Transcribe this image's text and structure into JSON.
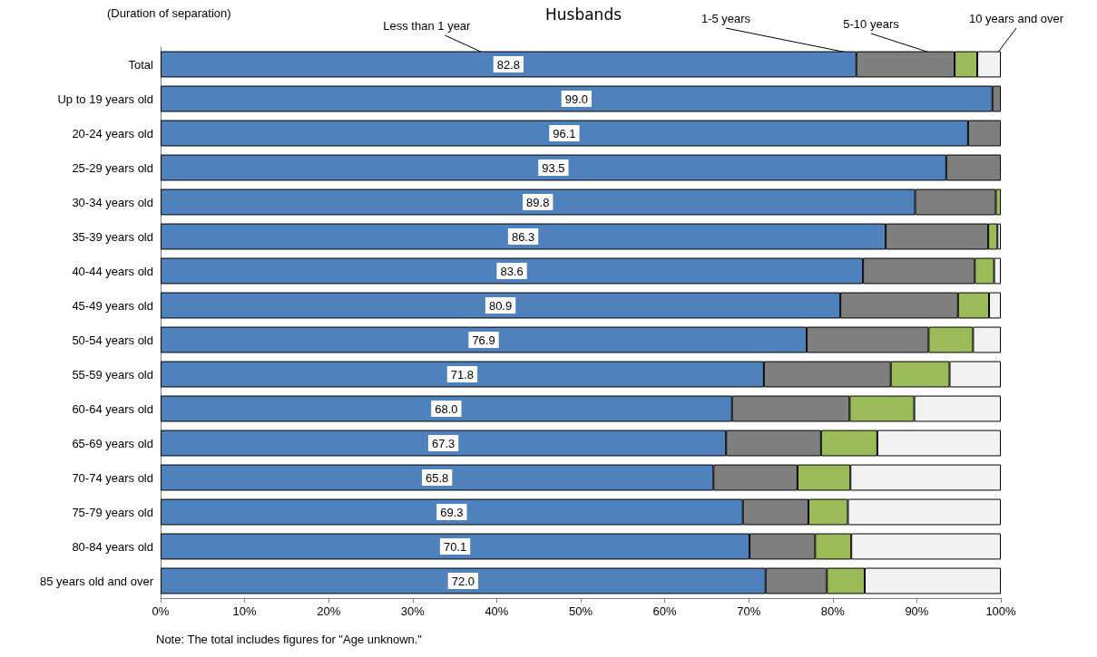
{
  "chart_data": {
    "type": "bar",
    "orientation": "horizontal",
    "stacked": true,
    "title": "Husbands",
    "legend_title": "(Duration of separation)",
    "legend": "top",
    "categories": [
      "Total",
      "Up to 19 years old",
      "20-24 years old",
      "25-29 years old",
      "30-34 years old",
      "35-39 years old",
      "40-44 years old",
      "45-49 years old",
      "50-54 years old",
      "55-59 years old",
      "60-64 years old",
      "65-69 years old",
      "70-74 years old",
      "75-79 years old",
      "80-84 years old",
      "85 years old and over"
    ],
    "series": [
      {
        "name": "Less than 1 year",
        "color": "#4f81bd",
        "values": [
          82.8,
          99.0,
          96.1,
          93.5,
          89.8,
          86.3,
          83.6,
          80.9,
          76.9,
          71.8,
          68.0,
          67.3,
          65.8,
          69.3,
          70.1,
          72.0
        ],
        "value_labels": [
          "82.8",
          "99.0",
          "96.1",
          "93.5",
          "89.8",
          "86.3",
          "83.6",
          "80.9",
          "76.9",
          "71.8",
          "68.0",
          "67.3",
          "65.8",
          "69.3",
          "70.1",
          "72.0"
        ]
      },
      {
        "name": "1-5 years",
        "color": "#7f7f7f",
        "values": [
          11.7,
          1.0,
          3.9,
          6.5,
          9.6,
          12.2,
          13.3,
          14.0,
          14.5,
          15.1,
          14.0,
          11.3,
          10.0,
          7.8,
          7.8,
          7.3
        ]
      },
      {
        "name": "5-10 years",
        "color": "#9bbb59",
        "values": [
          2.7,
          null,
          null,
          null,
          0.6,
          1.1,
          2.3,
          3.7,
          5.3,
          7.0,
          7.7,
          6.7,
          6.3,
          4.7,
          4.3,
          4.5
        ]
      },
      {
        "name": "10 years and over",
        "color": "#f2f2f2",
        "values": [
          2.8,
          null,
          null,
          null,
          null,
          0.4,
          0.8,
          1.4,
          3.3,
          6.1,
          10.3,
          14.7,
          17.9,
          18.2,
          17.8,
          16.2
        ]
      }
    ],
    "xlim": [
      0,
      100
    ],
    "xticks": [
      {
        "value": 0,
        "label": "0%"
      },
      {
        "value": 10,
        "label": "10%"
      },
      {
        "value": 20,
        "label": "20%"
      },
      {
        "value": 30,
        "label": "30%"
      },
      {
        "value": 40,
        "label": "40%"
      },
      {
        "value": 50,
        "label": "50%"
      },
      {
        "value": 60,
        "label": "60%"
      },
      {
        "value": 70,
        "label": "70%"
      },
      {
        "value": 80,
        "label": "80%"
      },
      {
        "value": 90,
        "label": "90%"
      },
      {
        "value": 100,
        "label": "100%"
      }
    ],
    "annotations": [
      "Note: The total includes figures for \"Age unknown.\""
    ]
  }
}
